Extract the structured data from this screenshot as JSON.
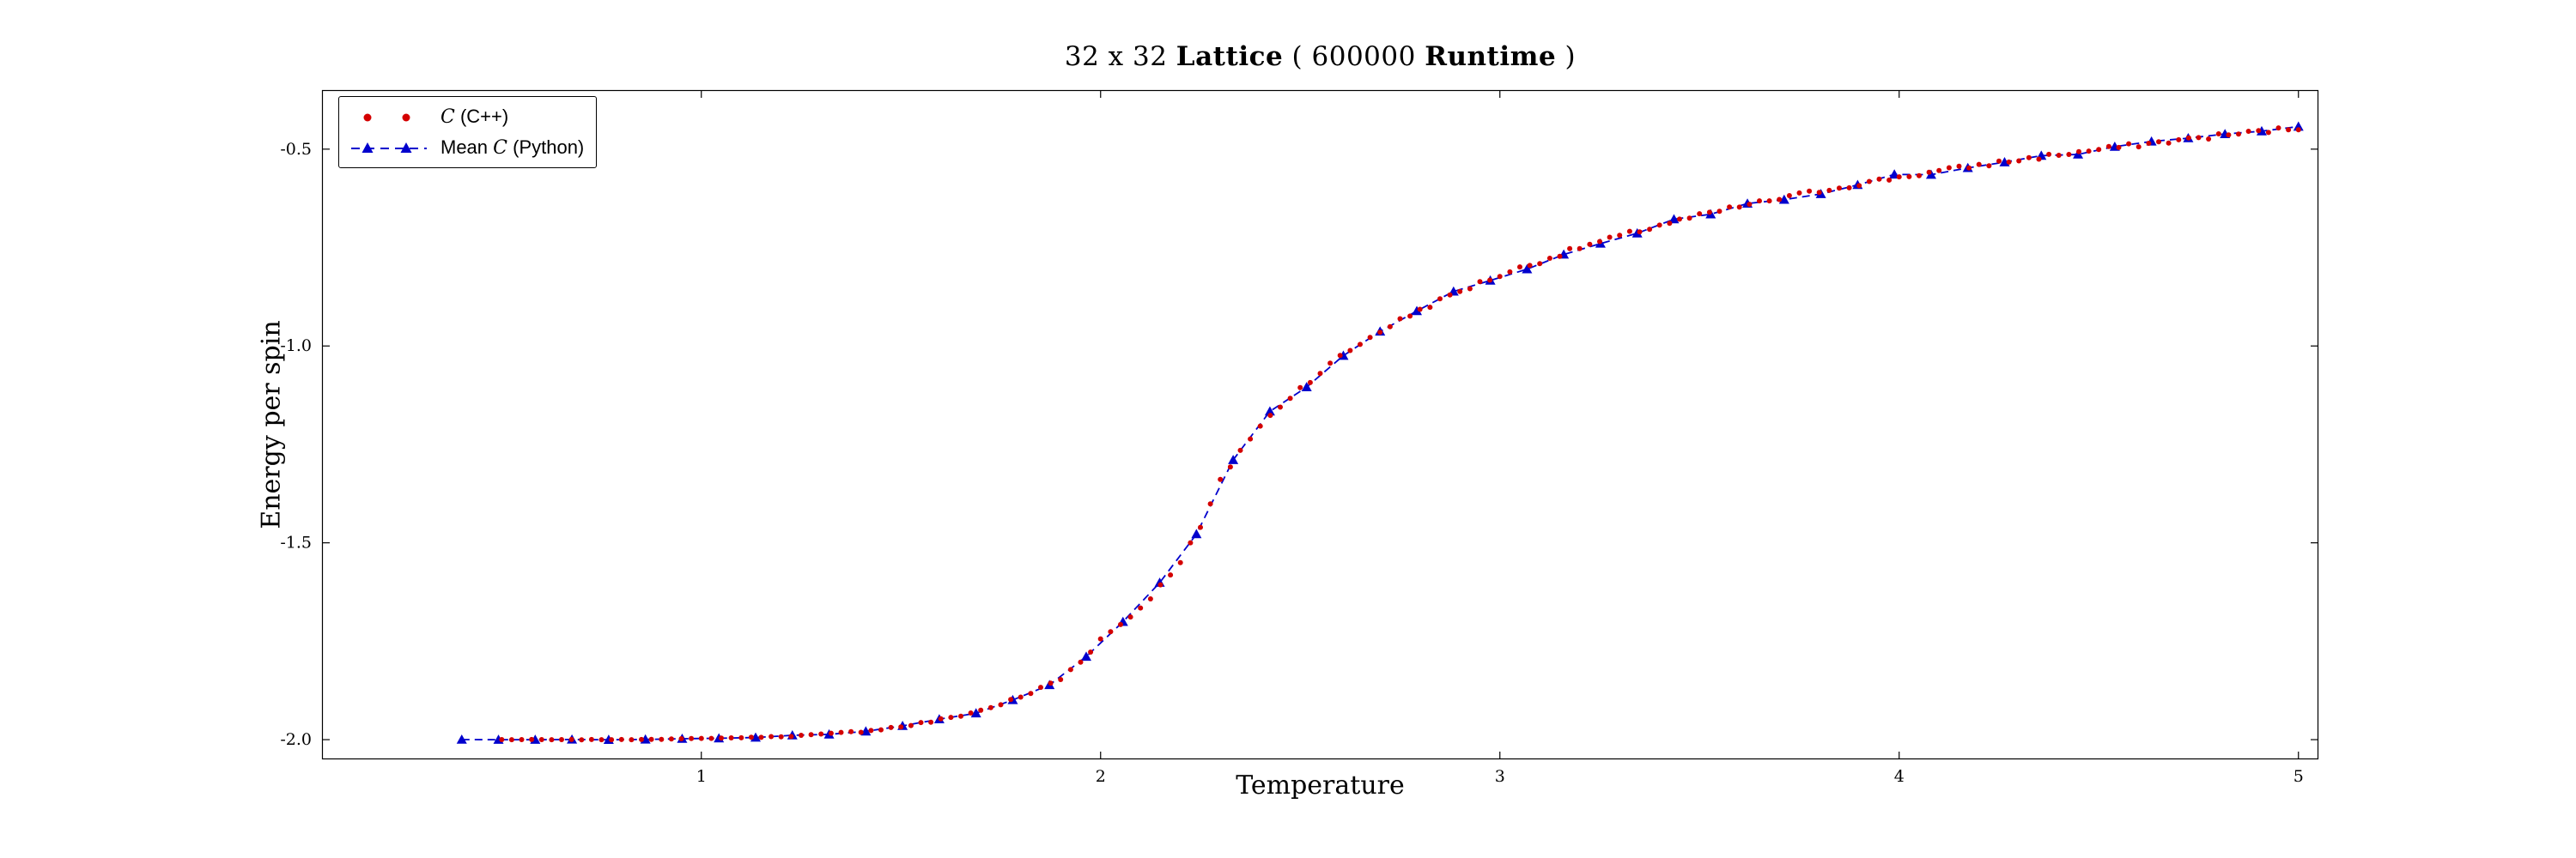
{
  "chart_data": {
    "type": "scatter",
    "title": "32 x 32 Lattice ( 600000 Runtime )",
    "title_parts": [
      {
        "text": "32 x 32 ",
        "bold": false
      },
      {
        "text": "Lattice",
        "bold": true
      },
      {
        "text": " ( 600000 ",
        "bold": false
      },
      {
        "text": "Runtime",
        "bold": true
      },
      {
        "text": " )",
        "bold": false
      }
    ],
    "xlabel": "Temperature",
    "ylabel": "Energy per spin",
    "xlim": [
      0.05,
      5.05
    ],
    "ylim": [
      -2.05,
      -0.35
    ],
    "xticks": [
      1,
      2,
      3,
      4,
      5
    ],
    "xtick_labels": [
      "1",
      "2",
      "3",
      "4",
      "5"
    ],
    "yticks": [
      -0.5,
      -1.0,
      -1.5,
      -2.0
    ],
    "ytick_labels": [
      "-0.5",
      "-1.0",
      "-1.5",
      "-2.0"
    ],
    "grid": false,
    "legend": {
      "position": "upper-left",
      "entries": [
        {
          "label": "C (C++)",
          "label_parts": [
            {
              "text": "C",
              "style": "math"
            },
            {
              "text": " (C++)",
              "style": "plain"
            }
          ]
        },
        {
          "label": "Mean C (Python)",
          "label_parts": [
            {
              "text": "Mean ",
              "style": "plain"
            },
            {
              "text": "C",
              "style": "math"
            },
            {
              "text": " (Python)",
              "style": "plain"
            }
          ]
        }
      ]
    },
    "curve_anchors": [
      [
        0.4,
        -2.0
      ],
      [
        0.6,
        -2.0
      ],
      [
        0.8,
        -2.0
      ],
      [
        0.9,
        -1.999
      ],
      [
        1.0,
        -1.997
      ],
      [
        1.1,
        -1.995
      ],
      [
        1.2,
        -1.992
      ],
      [
        1.3,
        -1.987
      ],
      [
        1.4,
        -1.979
      ],
      [
        1.5,
        -1.967
      ],
      [
        1.6,
        -1.95
      ],
      [
        1.7,
        -1.926
      ],
      [
        1.8,
        -1.893
      ],
      [
        1.9,
        -1.846
      ],
      [
        1.95,
        -1.8
      ],
      [
        2.0,
        -1.745
      ],
      [
        2.05,
        -1.707
      ],
      [
        2.1,
        -1.665
      ],
      [
        2.15,
        -1.61
      ],
      [
        2.2,
        -1.546
      ],
      [
        2.25,
        -1.462
      ],
      [
        2.27,
        -1.414
      ],
      [
        2.3,
        -1.344
      ],
      [
        2.35,
        -1.265
      ],
      [
        2.4,
        -1.205
      ],
      [
        2.45,
        -1.152
      ],
      [
        2.5,
        -1.107
      ],
      [
        2.6,
        -1.027
      ],
      [
        2.7,
        -0.962
      ],
      [
        2.8,
        -0.908
      ],
      [
        2.9,
        -0.861
      ],
      [
        3.0,
        -0.82
      ],
      [
        3.2,
        -0.75
      ],
      [
        3.4,
        -0.693
      ],
      [
        3.6,
        -0.646
      ],
      [
        3.8,
        -0.606
      ],
      [
        4.0,
        -0.571
      ],
      [
        4.2,
        -0.541
      ],
      [
        4.4,
        -0.514
      ],
      [
        4.6,
        -0.489
      ],
      [
        4.8,
        -0.466
      ],
      [
        5.0,
        -0.446
      ]
    ],
    "series": [
      {
        "name": "C (C++)",
        "color": "#d40000",
        "marker": "circle",
        "marker_size": 3,
        "line": "none",
        "x_start": 0.5,
        "x_end": 5.0,
        "x_step": 0.025,
        "noise_amp": 0.006,
        "seed": 7
      },
      {
        "name": "Mean C (Python)",
        "color": "#0000cd",
        "marker": "triangle-up",
        "marker_size": 6,
        "line": "dashed",
        "x_start": 0.4,
        "x_end": 5.0,
        "x_step": 0.092,
        "noise_amp": 0.009,
        "seed": 13
      }
    ]
  }
}
